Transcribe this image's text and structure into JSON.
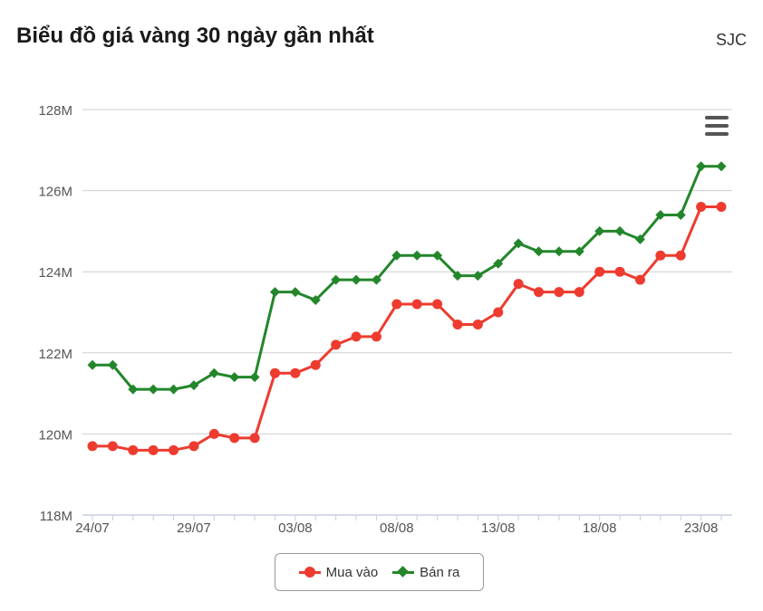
{
  "header": {
    "title": "Biểu đồ giá vàng 30 ngày gần nhất",
    "brand": "SJC"
  },
  "menu": {
    "icon": "hamburger-menu-icon"
  },
  "chart_data": {
    "type": "line",
    "title": "Biểu đồ giá vàng 30 ngày gần nhất",
    "x_tick_labels": [
      "24/07",
      "29/07",
      "03/08",
      "08/08",
      "13/08",
      "18/08",
      "23/08"
    ],
    "y_tick_labels": [
      "118M",
      "120M",
      "122M",
      "124M",
      "126M",
      "128M"
    ],
    "ylim": [
      118,
      128
    ],
    "yticks": [
      118,
      120,
      122,
      124,
      126,
      128
    ],
    "x": [
      "24/07",
      "25/07",
      "26/07",
      "27/07",
      "28/07",
      "29/07",
      "30/07",
      "31/07",
      "01/08",
      "02/08",
      "03/08",
      "04/08",
      "05/08",
      "06/08",
      "07/08",
      "08/08",
      "09/08",
      "10/08",
      "11/08",
      "12/08",
      "13/08",
      "14/08",
      "15/08",
      "16/08",
      "17/08",
      "18/08",
      "19/08",
      "20/08",
      "21/08",
      "22/08",
      "23/08",
      "24/08"
    ],
    "grid": true,
    "legend_position": "bottom-center",
    "series": [
      {
        "name": "Mua vào",
        "color": "#ee3b2f",
        "marker": "circle",
        "values": [
          119.7,
          119.7,
          119.6,
          119.6,
          119.6,
          119.7,
          120.0,
          119.9,
          119.9,
          121.5,
          121.5,
          121.7,
          122.2,
          122.4,
          122.4,
          123.2,
          123.2,
          123.2,
          122.7,
          122.7,
          123.0,
          123.7,
          123.5,
          123.5,
          123.5,
          124.0,
          124.0,
          123.8,
          124.4,
          124.4,
          125.6,
          125.6
        ]
      },
      {
        "name": "Bán ra",
        "color": "#23862b",
        "marker": "diamond",
        "values": [
          121.7,
          121.7,
          121.1,
          121.1,
          121.1,
          121.2,
          121.5,
          121.4,
          121.4,
          123.5,
          123.5,
          123.3,
          123.8,
          123.8,
          123.8,
          124.4,
          124.4,
          124.4,
          123.9,
          123.9,
          124.2,
          124.7,
          124.5,
          124.5,
          124.5,
          125.0,
          125.0,
          124.8,
          125.4,
          125.4,
          126.6,
          126.6
        ]
      }
    ]
  }
}
